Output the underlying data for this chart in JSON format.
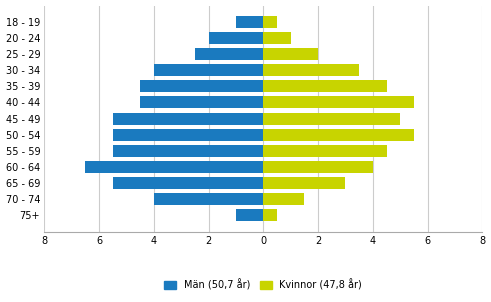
{
  "age_groups": [
    "18 - 19",
    "20 - 24",
    "25 - 29",
    "30 - 34",
    "35 - 39",
    "40 - 44",
    "45 - 49",
    "50 - 54",
    "55 - 59",
    "60 - 64",
    "65 - 69",
    "70 - 74",
    "75+"
  ],
  "men_values": [
    1.0,
    2.0,
    2.5,
    4.0,
    4.5,
    4.5,
    5.5,
    5.5,
    5.5,
    6.5,
    5.5,
    4.0,
    1.0
  ],
  "women_values": [
    0.5,
    1.0,
    2.0,
    3.5,
    4.5,
    5.5,
    5.0,
    5.5,
    4.5,
    4.0,
    3.0,
    1.5,
    0.5
  ],
  "men_color": "#1a7abf",
  "women_color": "#c8d400",
  "xlim": 8,
  "men_label": "Män (50,7 år)",
  "women_label": "Kvinnor (47,8 år)",
  "background_color": "#ffffff",
  "grid_color": "#cccccc"
}
